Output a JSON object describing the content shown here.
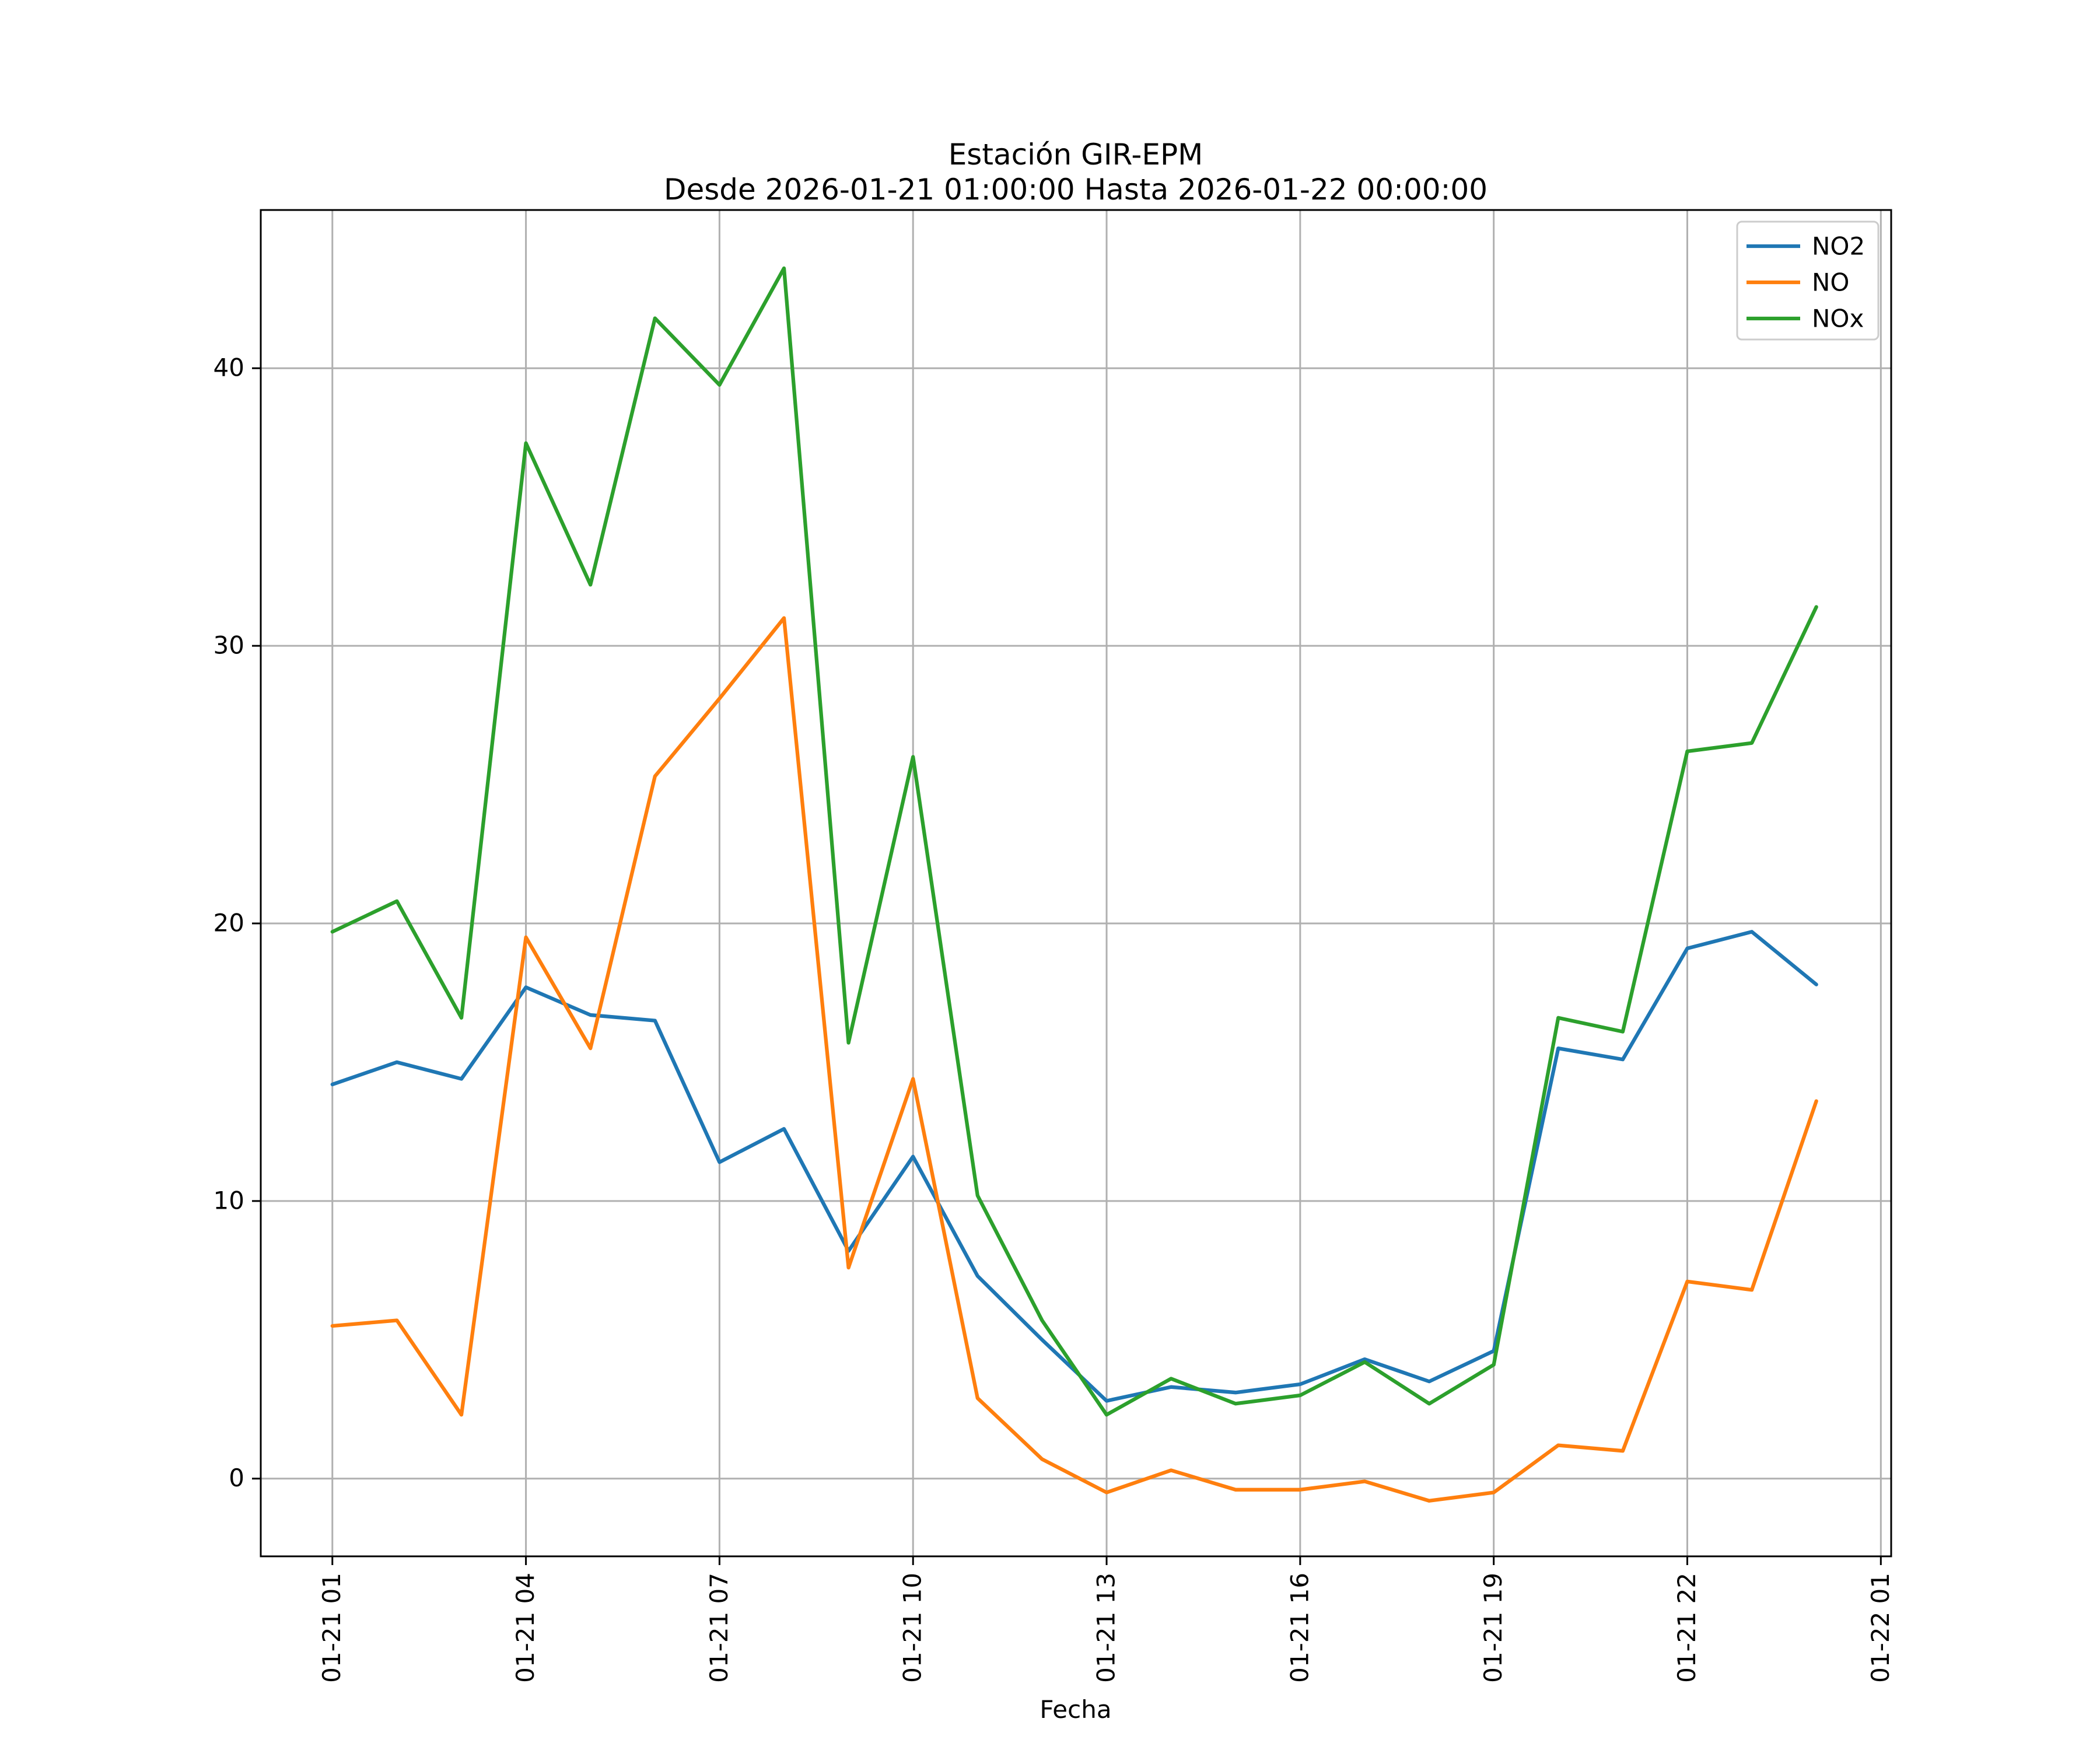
{
  "chart_data": {
    "type": "line",
    "title": "Estación GIR-EPM",
    "subtitle": "Desde 2026-01-21 01:00:00 Hasta 2026-01-22 00:00:00",
    "xlabel": "Fecha",
    "ylabel": "",
    "grid": true,
    "legend_position": "upper right",
    "x_hours": [
      1,
      2,
      3,
      4,
      5,
      6,
      7,
      8,
      9,
      10,
      11,
      12,
      13,
      14,
      15,
      16,
      17,
      18,
      19,
      20,
      21,
      22,
      23,
      24
    ],
    "x_ticks": [
      1,
      4,
      7,
      10,
      13,
      16,
      19,
      22,
      25
    ],
    "x_tick_labels": [
      "01-21 01",
      "01-21 04",
      "01-21 07",
      "01-21 10",
      "01-21 13",
      "01-21 16",
      "01-21 19",
      "01-21 22",
      "01-22 01"
    ],
    "y_ticks": [
      0,
      10,
      20,
      30,
      40
    ],
    "y_tick_labels": [
      "0",
      "10",
      "20",
      "30",
      "40"
    ],
    "xlim": [
      -0.11,
      25.16
    ],
    "ylim": [
      -2.8,
      45.7
    ],
    "series": [
      {
        "name": "NO2",
        "color": "#1f77b4",
        "values": [
          14.2,
          15.0,
          14.4,
          17.7,
          16.7,
          16.5,
          11.4,
          12.6,
          8.2,
          11.6,
          7.3,
          5.0,
          2.8,
          3.3,
          3.1,
          3.4,
          4.3,
          3.5,
          4.6,
          15.5,
          15.1,
          19.1,
          19.7,
          17.8
        ]
      },
      {
        "name": "NO",
        "color": "#ff7f0e",
        "values": [
          5.5,
          5.7,
          2.3,
          19.5,
          15.5,
          25.3,
          28.1,
          31.0,
          7.6,
          14.4,
          2.9,
          0.7,
          -0.5,
          0.3,
          -0.4,
          -0.4,
          -0.1,
          -0.8,
          -0.5,
          1.2,
          1.0,
          7.1,
          6.8,
          13.6
        ]
      },
      {
        "name": "NOx",
        "color": "#2ca02c",
        "values": [
          19.7,
          20.8,
          16.6,
          37.3,
          32.2,
          41.8,
          39.4,
          43.6,
          15.7,
          26.0,
          10.2,
          5.7,
          2.3,
          3.6,
          2.7,
          3.0,
          4.2,
          2.7,
          4.1,
          16.6,
          16.1,
          26.2,
          26.5,
          31.4
        ]
      }
    ],
    "colors": {
      "grid": "#b0b0b0",
      "spine": "#000000",
      "legend_edge": "#cccccc",
      "background": "#ffffff"
    }
  }
}
